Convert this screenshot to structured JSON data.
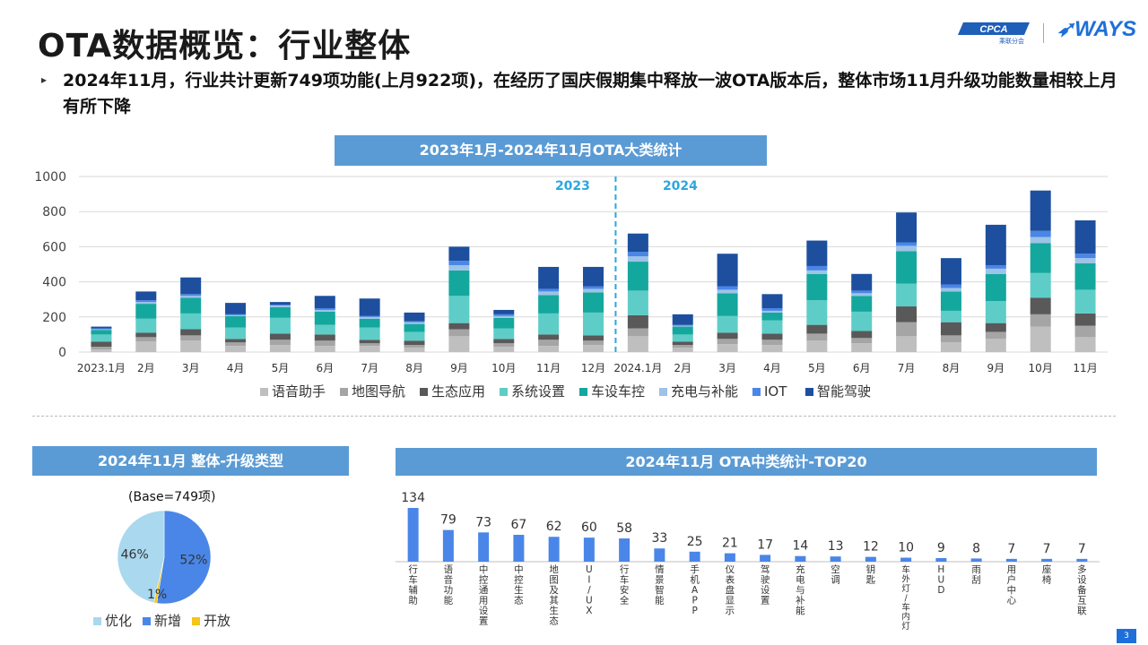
{
  "page": {
    "title": "OTA数据概览：行业整体",
    "bullet_text": "2024年11月，行业共计更新749项功能(上月922项)，在经历了国庆假期集中释放一波OTA版本后，整体市场11月升级功能数量相较上月有所下降",
    "logo_cpca": "CPCA",
    "logo_cpca_sub": "乘联分会",
    "logo_ways": "WAYS",
    "page_number": "3"
  },
  "chart_data": [
    {
      "type": "bar",
      "stacked": true,
      "title": "2023年1月-2024年11月OTA大类统计",
      "categories": [
        "2023.1月",
        "2月",
        "3月",
        "4月",
        "5月",
        "6月",
        "7月",
        "8月",
        "9月",
        "10月",
        "11月",
        "12月",
        "2024.1月",
        "2月",
        "3月",
        "4月",
        "5月",
        "6月",
        "7月",
        "8月",
        "9月",
        "10月",
        "11月"
      ],
      "ylim": [
        0,
        1000
      ],
      "yticks": [
        "0",
        "200",
        "400",
        "600",
        "800",
        "1000"
      ],
      "grid": true,
      "legend_position": "bottom",
      "divider_labels": [
        "2023",
        "2024"
      ],
      "series": [
        {
          "name": "语音助手",
          "color": "#bfbfbf",
          "values": [
            15,
            60,
            65,
            35,
            40,
            35,
            35,
            25,
            90,
            30,
            35,
            40,
            90,
            25,
            45,
            40,
            65,
            50,
            90,
            55,
            75,
            145,
            85
          ]
        },
        {
          "name": "地图导航",
          "color": "#a5a5a5",
          "values": [
            15,
            25,
            30,
            20,
            30,
            30,
            15,
            15,
            40,
            20,
            35,
            25,
            45,
            15,
            30,
            30,
            40,
            30,
            80,
            40,
            40,
            70,
            65
          ]
        },
        {
          "name": "生态应用",
          "color": "#595959",
          "values": [
            30,
            25,
            35,
            20,
            35,
            35,
            20,
            25,
            35,
            25,
            30,
            30,
            75,
            20,
            35,
            35,
            50,
            40,
            90,
            75,
            50,
            95,
            70
          ]
        },
        {
          "name": "系统设置",
          "color": "#5ecdc7",
          "values": [
            40,
            80,
            90,
            65,
            90,
            55,
            70,
            50,
            155,
            60,
            120,
            130,
            140,
            40,
            95,
            75,
            140,
            110,
            130,
            65,
            125,
            140,
            135
          ]
        },
        {
          "name": "车设车控",
          "color": "#14a79e",
          "values": [
            25,
            85,
            90,
            65,
            60,
            75,
            50,
            45,
            145,
            60,
            105,
            115,
            165,
            45,
            130,
            45,
            150,
            90,
            185,
            110,
            155,
            170,
            150
          ]
        },
        {
          "name": "充电与补能",
          "color": "#9dc3e6",
          "values": [
            5,
            10,
            10,
            5,
            10,
            10,
            10,
            10,
            30,
            10,
            20,
            20,
            30,
            5,
            20,
            10,
            20,
            15,
            30,
            20,
            30,
            35,
            30
          ]
        },
        {
          "name": "IOT",
          "color": "#4a86e8",
          "values": [
            5,
            10,
            10,
            5,
            5,
            10,
            5,
            5,
            25,
            10,
            15,
            15,
            25,
            5,
            20,
            15,
            25,
            15,
            20,
            20,
            20,
            35,
            25
          ]
        },
        {
          "name": "智能驾驶",
          "color": "#1d4f9e",
          "values": [
            10,
            50,
            95,
            65,
            15,
            70,
            100,
            50,
            80,
            25,
            125,
            110,
            105,
            60,
            185,
            80,
            145,
            95,
            170,
            150,
            230,
            230,
            190
          ]
        }
      ]
    },
    {
      "type": "pie",
      "title": "2024年11月 整体-升级类型",
      "subtitle": "(Base=749项)",
      "slices": [
        {
          "name": "优化",
          "value": 46,
          "label": "46%",
          "color": "#a9d8ef"
        },
        {
          "name": "新增",
          "value": 52,
          "label": "52%",
          "color": "#4a86e8"
        },
        {
          "name": "开放",
          "value": 1,
          "label": "1%",
          "color": "#f5c518"
        }
      ],
      "legend_position": "bottom"
    },
    {
      "type": "bar",
      "title": "2024年11月 OTA中类统计-TOP20",
      "color": "#4a86e8",
      "categories": [
        "行车辅助",
        "语音功能",
        "中控通用设置",
        "中控生态",
        "地图及其生态",
        "UI/UX",
        "行车安全",
        "情景智能",
        "手机APP",
        "仪表盘显示",
        "驾驶设置",
        "充电与补能",
        "空调",
        "钥匙",
        "车外灯/车内灯",
        "HUD",
        "雨刮",
        "用户中心",
        "座椅",
        "多设备互联"
      ],
      "values": [
        134,
        79,
        73,
        67,
        62,
        60,
        58,
        33,
        25,
        21,
        17,
        14,
        13,
        12,
        10,
        9,
        8,
        7,
        7,
        7
      ],
      "value_labels": [
        "134",
        "79",
        "73",
        "67",
        "62",
        "60",
        "58",
        "33",
        "25",
        "21",
        "17",
        "14",
        "13",
        "12",
        "10",
        "9",
        "8",
        "7",
        "7",
        "7"
      ]
    }
  ]
}
